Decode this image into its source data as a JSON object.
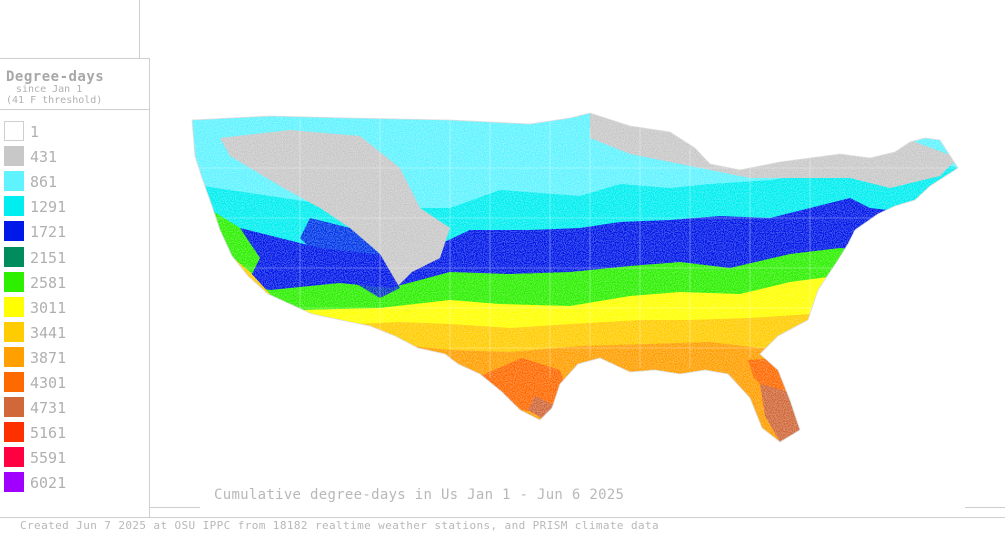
{
  "legend": {
    "title": "Degree-days",
    "subtitle_line1": "since Jan 1",
    "subtitle_line2": "(41 F threshold)",
    "items": [
      {
        "value": "1",
        "color": "#ffffff"
      },
      {
        "value": "431",
        "color": "#c8c8c8"
      },
      {
        "value": "861",
        "color": "#5ff3ff"
      },
      {
        "value": "1291",
        "color": "#00eef0"
      },
      {
        "value": "1721",
        "color": "#0018e8"
      },
      {
        "value": "2151",
        "color": "#008c5c"
      },
      {
        "value": "2581",
        "color": "#2cf000"
      },
      {
        "value": "3011",
        "color": "#ffff00"
      },
      {
        "value": "3441",
        "color": "#ffcc00"
      },
      {
        "value": "3871",
        "color": "#ff9f00"
      },
      {
        "value": "4301",
        "color": "#ff6a00"
      },
      {
        "value": "4731",
        "color": "#d0683a"
      },
      {
        "value": "5161",
        "color": "#ff3000"
      },
      {
        "value": "5591",
        "color": "#ff0040"
      },
      {
        "value": "6021",
        "color": "#a000ff"
      }
    ]
  },
  "map": {
    "title": "Cumulative degree-days in Us  Jan 1 - Jun 6 2025"
  },
  "footer": {
    "credit": "Created Jun 7 2025 at OSU IPPC from 18182 realtime weather stations, and PRISM climate data"
  }
}
